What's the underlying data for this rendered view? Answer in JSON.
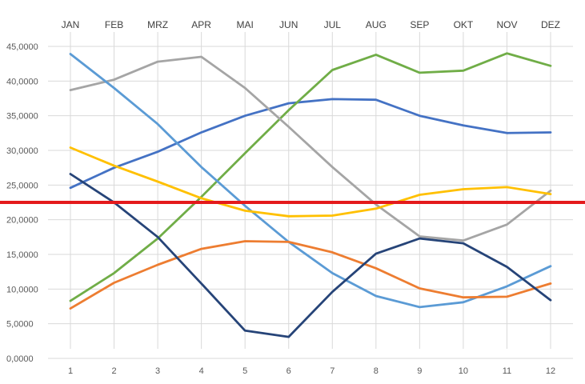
{
  "chart_data": {
    "type": "line",
    "x": [
      "1",
      "2",
      "3",
      "4",
      "5",
      "6",
      "7",
      "8",
      "9",
      "10",
      "11",
      "12"
    ],
    "top_labels": [
      "JAN",
      "FEB",
      "MRZ",
      "APR",
      "MAI",
      "JUN",
      "JUL",
      "AUG",
      "SEP",
      "OKT",
      "NOV",
      "DEZ"
    ],
    "yticks": [
      "0,0000",
      "5,0000",
      "10,0000",
      "15,0000",
      "20,0000",
      "25,0000",
      "30,0000",
      "35,0000",
      "40,0000",
      "45,0000"
    ],
    "ylim": [
      0,
      45
    ],
    "grid": true,
    "reference_line": {
      "value": 22.5,
      "color": "#e41a1c"
    },
    "series": [
      {
        "color": "#4472c4",
        "values": [
          24.6,
          27.5,
          29.8,
          32.6,
          35.0,
          36.8,
          37.4,
          37.3,
          35.0,
          33.6,
          32.5,
          32.6
        ]
      },
      {
        "color": "#70ad47",
        "values": [
          8.3,
          12.3,
          17.3,
          23.3,
          29.6,
          35.8,
          41.6,
          43.8,
          41.2,
          41.5,
          44.0,
          42.2
        ]
      },
      {
        "color": "#a5a5a5",
        "values": [
          38.7,
          40.2,
          42.8,
          43.5,
          39.0,
          33.4,
          27.6,
          22.2,
          17.6,
          17.0,
          19.3,
          24.2
        ]
      },
      {
        "color": "#5b9bd5",
        "values": [
          43.9,
          39.0,
          33.8,
          27.6,
          22.0,
          16.8,
          12.3,
          9.0,
          7.4,
          8.1,
          10.4,
          13.3
        ]
      },
      {
        "color": "#ffc000",
        "values": [
          30.4,
          27.8,
          25.5,
          23.1,
          21.3,
          20.5,
          20.6,
          21.6,
          23.6,
          24.4,
          24.7,
          23.7
        ]
      },
      {
        "color": "#ed7d31",
        "values": [
          7.2,
          10.9,
          13.5,
          15.8,
          16.9,
          16.8,
          15.3,
          13.0,
          10.1,
          8.8,
          8.9,
          10.8
        ]
      },
      {
        "color": "#264478",
        "values": [
          26.6,
          22.5,
          17.5,
          10.8,
          4.0,
          3.1,
          9.6,
          15.1,
          17.3,
          16.6,
          13.2,
          8.4
        ]
      }
    ]
  }
}
